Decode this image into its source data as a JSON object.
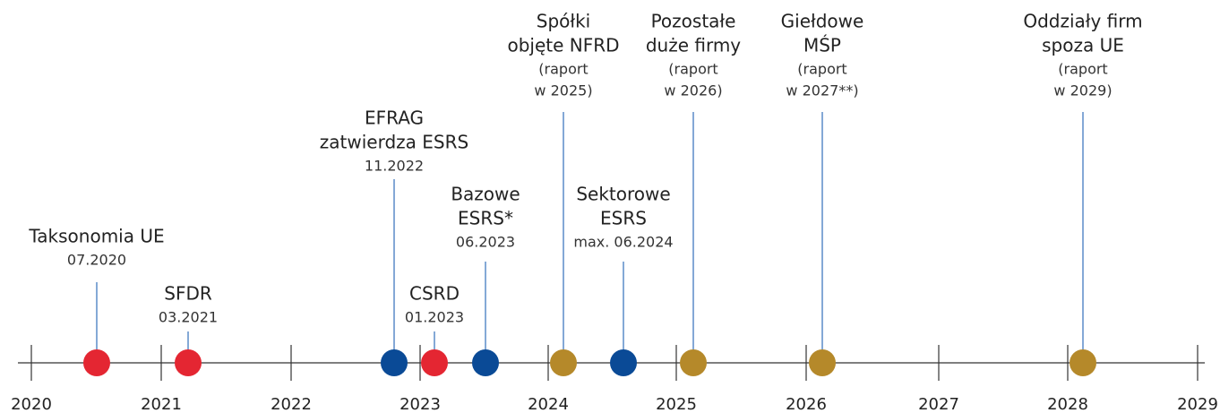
{
  "years": [
    "2020",
    "2021",
    "2022",
    "2023",
    "2024",
    "2025",
    "2026",
    "2027",
    "2028",
    "2029"
  ],
  "events": [
    {
      "title": [
        "Taksonomia UE"
      ],
      "sub": [
        "07.2020"
      ]
    },
    {
      "title": [
        "SFDR"
      ],
      "sub": [
        "03.2021"
      ]
    },
    {
      "title": [
        "EFRAG",
        "zatwierdza ESRS"
      ],
      "sub": [
        "11.2022"
      ]
    },
    {
      "title": [
        "CSRD"
      ],
      "sub": [
        "01.2023"
      ]
    },
    {
      "title": [
        "Bazowe",
        "ESRS*"
      ],
      "sub": [
        "06.2023"
      ]
    },
    {
      "title": [
        "Spółki",
        "objęte NFRD"
      ],
      "sub": [
        "(raport",
        "w 2025)"
      ]
    },
    {
      "title": [
        "Sektorowe",
        "ESRS"
      ],
      "sub": [
        "max. 06.2024"
      ]
    },
    {
      "title": [
        "Pozostałe",
        "duże firmy"
      ],
      "sub": [
        "(raport",
        "w 2026)"
      ]
    },
    {
      "title": [
        "Giełdowe",
        "MŚP"
      ],
      "sub": [
        "(raport",
        "w 2027**)"
      ]
    },
    {
      "title": [
        "Oddziały firm",
        "spoza UE"
      ],
      "sub": [
        "(raport",
        "w 2029)"
      ]
    }
  ]
}
